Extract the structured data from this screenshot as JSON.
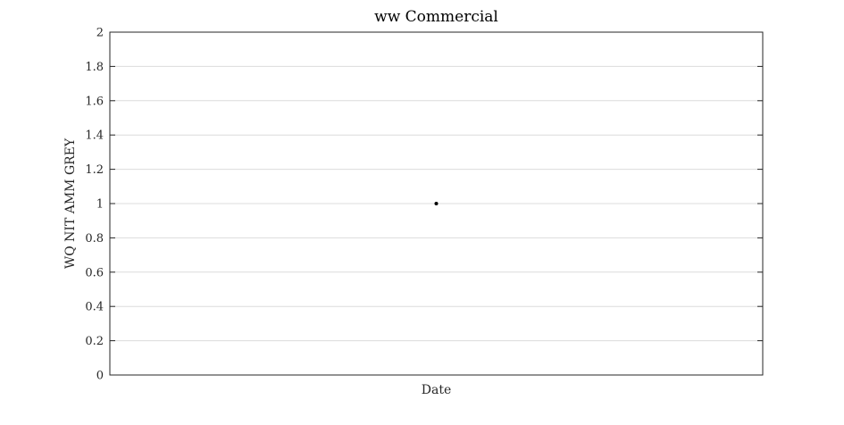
{
  "chart_data": {
    "type": "scatter",
    "title": "ww Commercial",
    "xlabel": "Date",
    "ylabel": "WQ NIT AMM GREY",
    "ylim": [
      0,
      2
    ],
    "yticks": [
      0,
      0.2,
      0.4,
      0.6,
      0.8,
      1,
      1.2,
      1.4,
      1.6,
      1.8,
      2
    ],
    "ytick_labels": [
      "0",
      "0.2",
      "0.4",
      "0.6",
      "0.8",
      "1",
      "1.2",
      "1.4",
      "1.6",
      "1.8",
      "2"
    ],
    "grid": "horizontal",
    "points": [
      {
        "x_position": "center",
        "y": 1
      }
    ],
    "colors": {
      "marker": "#000000",
      "grid": "#dcdcdc",
      "axes": "#262626"
    }
  }
}
